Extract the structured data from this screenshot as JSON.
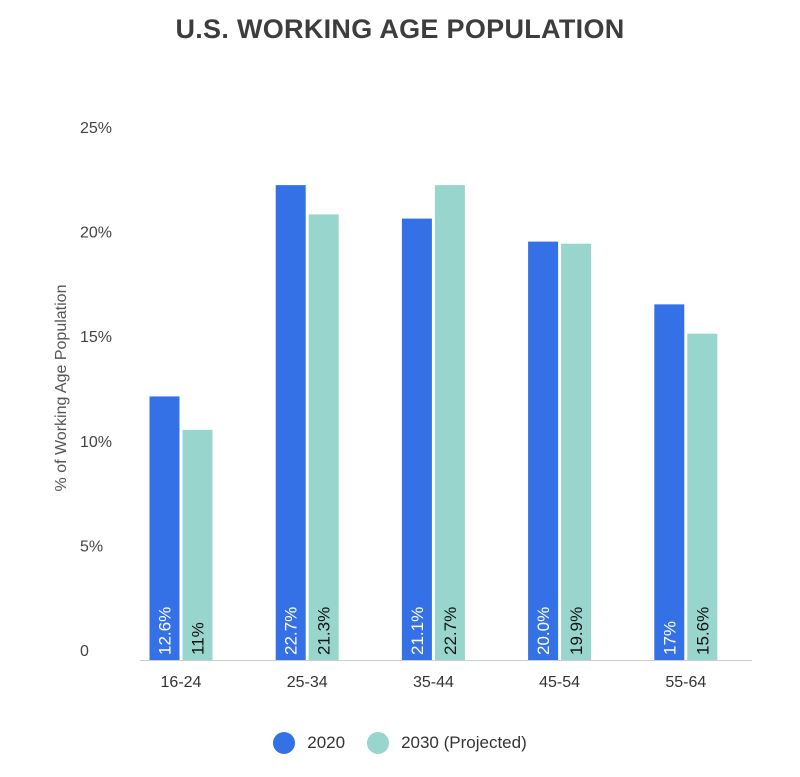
{
  "chart_data": {
    "type": "bar",
    "title": "U.S. WORKING AGE POPULATION",
    "xlabel": "",
    "ylabel": "% of Working Age Population",
    "ylim": [
      0,
      25
    ],
    "yticks": [
      {
        "v": 0,
        "label": "0"
      },
      {
        "v": 5,
        "label": "5%"
      },
      {
        "v": 10,
        "label": "10%"
      },
      {
        "v": 15,
        "label": "15%"
      },
      {
        "v": 20,
        "label": "20%"
      },
      {
        "v": 25,
        "label": "25%"
      }
    ],
    "categories": [
      "16-24",
      "25-34",
      "35-44",
      "45-54",
      "55-64"
    ],
    "series": [
      {
        "name": "2020",
        "color": "#3571e6",
        "label_color": "#ffffff",
        "values": [
          12.6,
          22.7,
          21.1,
          20.0,
          17
        ],
        "labels": [
          "12.6%",
          "22.7%",
          "21.1%",
          "20.0%",
          "17%"
        ]
      },
      {
        "name": "2030 (Projected)",
        "color": "#98d5cd",
        "label_color": "#111111",
        "values": [
          11,
          21.3,
          22.7,
          19.9,
          15.6
        ],
        "labels": [
          "11%",
          "21.3%",
          "22.7%",
          "19.9%",
          "15.6%"
        ]
      }
    ],
    "legend": "bottom",
    "grid": false
  }
}
